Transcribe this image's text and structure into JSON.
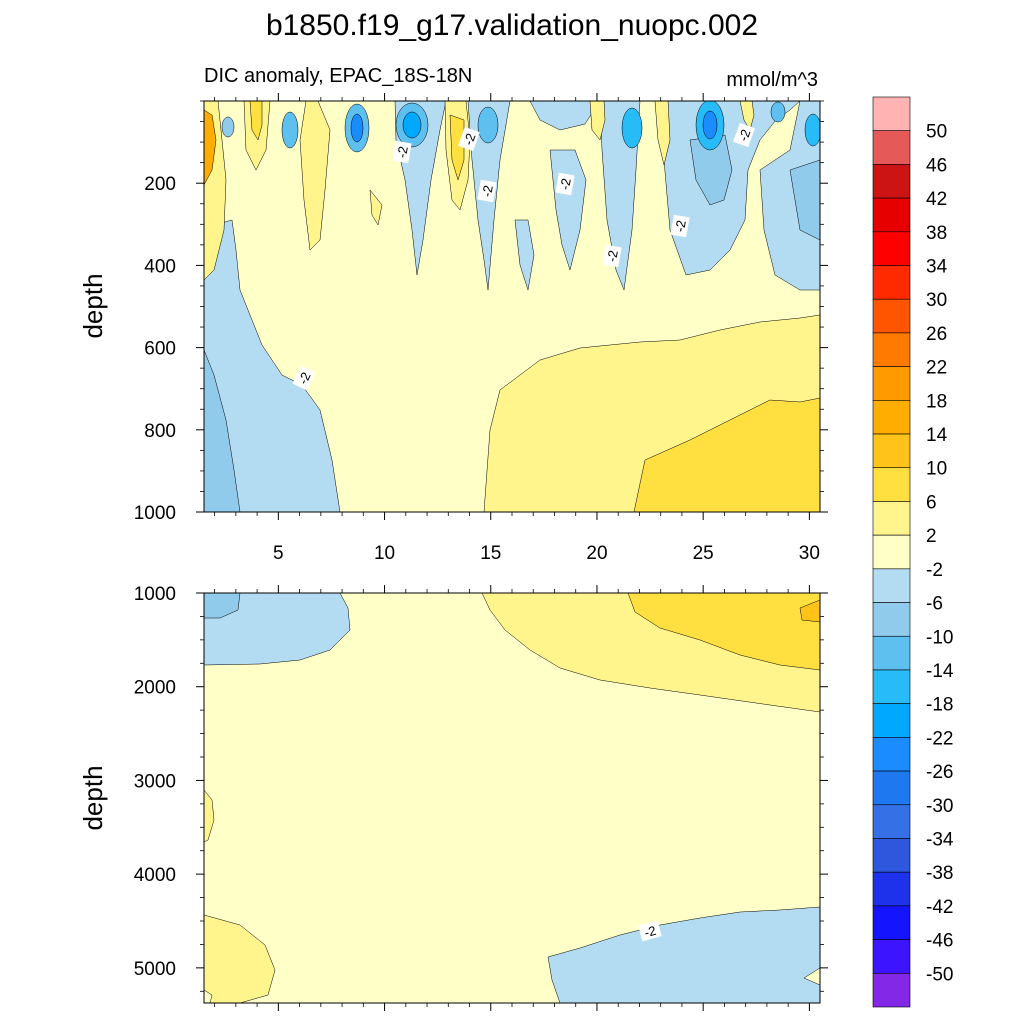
{
  "chart_data": {
    "type": "contour",
    "title": "b1850.f19_g17.validation_nuopc.002",
    "subtitle_left": "DIC anomaly, EPAC_18S-18N",
    "subtitle_right": "mmol/m^3",
    "colorbar": {
      "levels": [
        50,
        46,
        42,
        38,
        34,
        30,
        26,
        22,
        18,
        14,
        10,
        6,
        2,
        -2,
        -6,
        -10,
        -14,
        -18,
        -22,
        -26,
        -30,
        -34,
        -38,
        -42,
        -46,
        -50
      ],
      "colors": [
        "#ffb3b3",
        "#e65959",
        "#cc1414",
        "#e60000",
        "#ff0000",
        "#ff2a00",
        "#ff5500",
        "#ff7a00",
        "#ff9a00",
        "#ffad00",
        "#ffc31a",
        "#ffe040",
        "#fff58c",
        "#ffffc8",
        "#b3dcf3",
        "#91cbec",
        "#5ec0ee",
        "#27bbf7",
        "#00a8ff",
        "#1a8cff",
        "#1e78f0",
        "#3570e6",
        "#2f57dd",
        "#1e32eb",
        "#1414ff",
        "#3c14ff",
        "#8228e6"
      ]
    },
    "panels": [
      {
        "name": "upper",
        "ylabel": "depth",
        "yticks": [
          200,
          400,
          600,
          800,
          1000
        ],
        "ylim": [
          0,
          1000
        ],
        "xticks": [
          5,
          10,
          15,
          20,
          25,
          30
        ],
        "xlim": [
          1.5,
          30.5
        ],
        "contour_labels": [
          "-2",
          "-2",
          "-2",
          "-2",
          "-2",
          "-2",
          "-2",
          "-2"
        ]
      },
      {
        "name": "lower",
        "ylabel": "depth",
        "yticks": [
          1000,
          2000,
          3000,
          4000,
          5000
        ],
        "ylim": [
          1000,
          5375
        ],
        "xlim": [
          1.5,
          30.5
        ],
        "contour_labels": [
          "-2"
        ]
      }
    ]
  }
}
